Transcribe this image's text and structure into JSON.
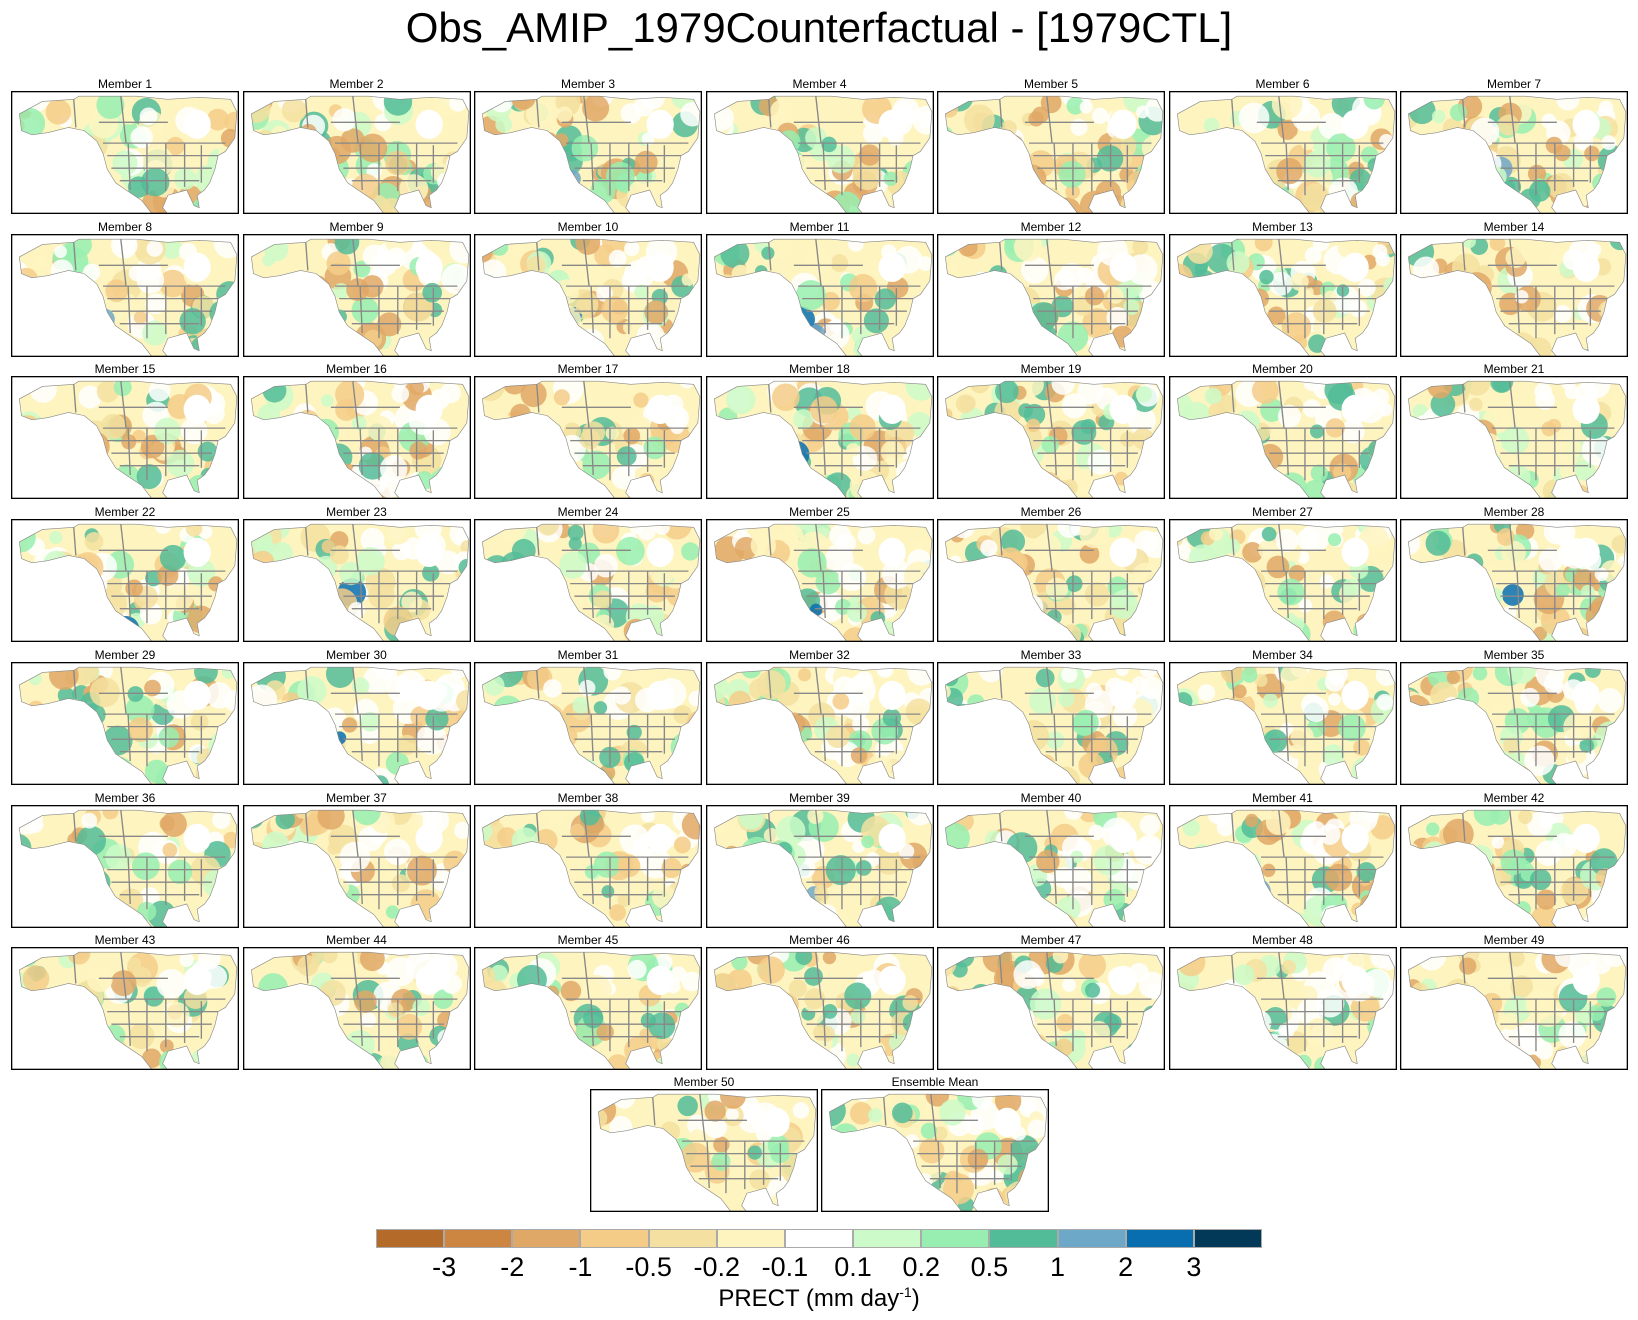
{
  "chart_data": {
    "type": "heatmap",
    "title": "Obs_AMIP_1979Counterfactual - [1979CTL]",
    "panels": [
      "Member 1",
      "Member 2",
      "Member 3",
      "Member 4",
      "Member 5",
      "Member 6",
      "Member 7",
      "Member 8",
      "Member 9",
      "Member 10",
      "Member 11",
      "Member 12",
      "Member 13",
      "Member 14",
      "Member 15",
      "Member 16",
      "Member 17",
      "Member 18",
      "Member 19",
      "Member 20",
      "Member 21",
      "Member 22",
      "Member 23",
      "Member 24",
      "Member 25",
      "Member 26",
      "Member 27",
      "Member 28",
      "Member 29",
      "Member 30",
      "Member 31",
      "Member 32",
      "Member 33",
      "Member 34",
      "Member 35",
      "Member 36",
      "Member 37",
      "Member 38",
      "Member 39",
      "Member 40",
      "Member 41",
      "Member 42",
      "Member 43",
      "Member 44",
      "Member 45",
      "Member 46",
      "Member 47",
      "Member 48",
      "Member 49",
      "Member 50",
      "Ensemble Mean"
    ],
    "colorbar": {
      "label": "PRECT (mm day",
      "label_sup": "-1",
      "label_end": ")",
      "ticks": [
        "-3",
        "-2",
        "-1",
        "-0.5",
        "-0.2",
        "-0.1",
        "0.1",
        "0.2",
        "0.5",
        "1",
        "2",
        "3"
      ],
      "colors": [
        "#b46a28",
        "#cc8642",
        "#e0a866",
        "#f4cc88",
        "#f4e0a0",
        "#fef4c0",
        "#ffffff",
        "#ccfac8",
        "#98eeb0",
        "#52bc98",
        "#6ea8c8",
        "#086eb0",
        "#023858"
      ]
    }
  }
}
